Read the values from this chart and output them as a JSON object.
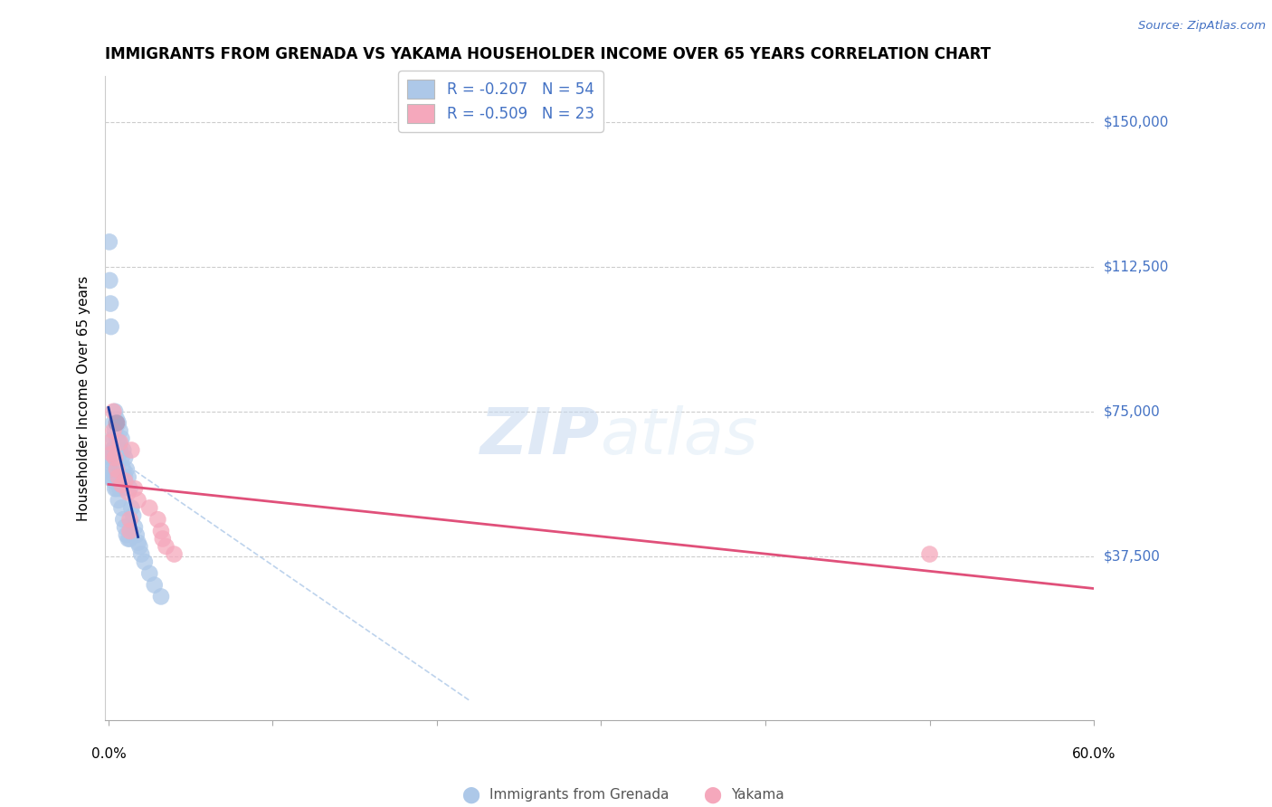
{
  "title": "IMMIGRANTS FROM GRENADA VS YAKAMA HOUSEHOLDER INCOME OVER 65 YEARS CORRELATION CHART",
  "source": "Source: ZipAtlas.com",
  "ylabel": "Householder Income Over 65 years",
  "ytick_labels": [
    "$37,500",
    "$75,000",
    "$112,500",
    "$150,000"
  ],
  "ytick_values": [
    37500,
    75000,
    112500,
    150000
  ],
  "ylim": [
    -5000,
    162000
  ],
  "xlim": [
    -0.002,
    0.6
  ],
  "watermark_zip": "ZIP",
  "watermark_atlas": "atlas",
  "legend_label1": "R = -0.207   N = 54",
  "legend_label2": "R = -0.509   N = 23",
  "bottom_legend1": "Immigrants from Grenada",
  "bottom_legend2": "Yakama",
  "blue_color": "#adc8e8",
  "pink_color": "#f5a8bc",
  "purple_color": "#b09ab8",
  "blue_line_color": "#1a3a9c",
  "pink_line_color": "#e0507a",
  "blue_dashed_color": "#adc8e8",
  "grenada_x": [
    0.0005,
    0.0008,
    0.001,
    0.001,
    0.001,
    0.0012,
    0.0015,
    0.002,
    0.002,
    0.002,
    0.003,
    0.003,
    0.003,
    0.003,
    0.004,
    0.004,
    0.004,
    0.005,
    0.005,
    0.005,
    0.005,
    0.006,
    0.006,
    0.006,
    0.006,
    0.007,
    0.007,
    0.007,
    0.008,
    0.008,
    0.008,
    0.009,
    0.009,
    0.009,
    0.01,
    0.01,
    0.01,
    0.011,
    0.011,
    0.012,
    0.012,
    0.013,
    0.013,
    0.014,
    0.015,
    0.016,
    0.017,
    0.018,
    0.019,
    0.02,
    0.022,
    0.025,
    0.028,
    0.032
  ],
  "grenada_y": [
    119000,
    109000,
    63000,
    60000,
    58000,
    103000,
    97000,
    65000,
    62000,
    59000,
    72000,
    68000,
    65000,
    57000,
    75000,
    70000,
    55000,
    73000,
    68000,
    63000,
    55000,
    72000,
    67000,
    62000,
    52000,
    70000,
    65000,
    55000,
    68000,
    63000,
    50000,
    65000,
    60000,
    47000,
    63000,
    58000,
    45000,
    60000,
    43000,
    58000,
    42000,
    55000,
    42000,
    50000,
    48000,
    45000,
    43000,
    41000,
    40000,
    38000,
    36000,
    33000,
    30000,
    27000
  ],
  "yakama_x": [
    0.001,
    0.002,
    0.003,
    0.004,
    0.005,
    0.006,
    0.007,
    0.008,
    0.01,
    0.012,
    0.013,
    0.013,
    0.014,
    0.016,
    0.018,
    0.025,
    0.03,
    0.032,
    0.033,
    0.035,
    0.04,
    0.5,
    0.003
  ],
  "yakama_y": [
    67000,
    64000,
    75000,
    63000,
    60000,
    58000,
    67000,
    56000,
    57000,
    54000,
    47000,
    44000,
    65000,
    55000,
    52000,
    50000,
    47000,
    44000,
    42000,
    40000,
    38000,
    38000,
    70000
  ]
}
